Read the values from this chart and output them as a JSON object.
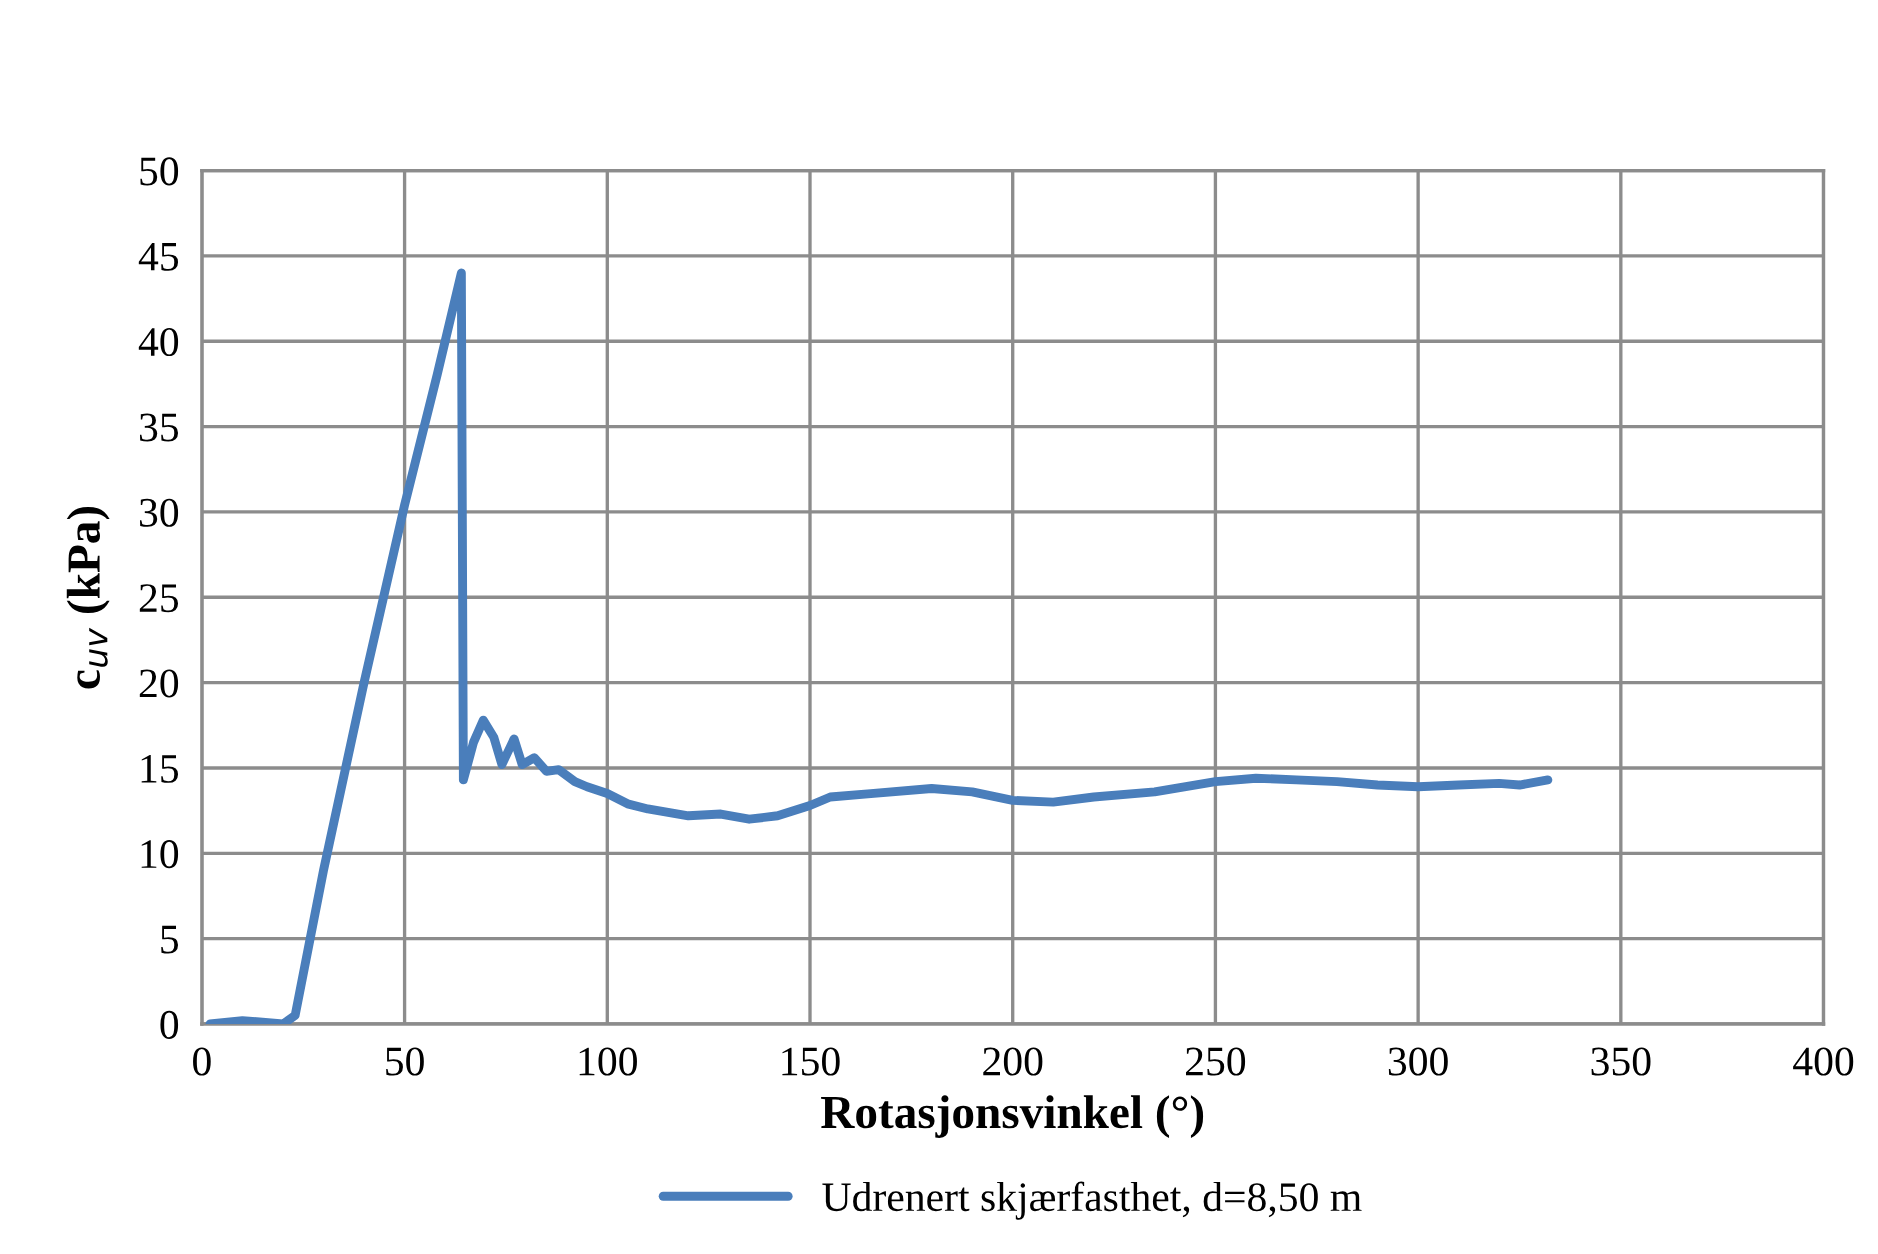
{
  "chart_data": {
    "type": "line",
    "xlabel": "Rotasjonsvinkel (°)",
    "ylabel": "c$_{uv}$ (kPa)",
    "xlim": [
      0,
      400
    ],
    "xticks": [
      0,
      50,
      100,
      150,
      200,
      250,
      300,
      350,
      400
    ],
    "ylim": [
      0,
      50
    ],
    "yticks": [
      0,
      5,
      10,
      15,
      20,
      25,
      30,
      35,
      40,
      45,
      50
    ],
    "grid": true,
    "legend": "bottom",
    "marker": "none",
    "line_style": "solid",
    "series": [
      {
        "name": "Udrenert skjærfasthet, d=8,50 m",
        "color": "#4a7ebb",
        "x": [
          2,
          10,
          20,
          23,
          30,
          40,
          50,
          58,
          64,
          64.5,
          67,
          69.4,
          72,
          74,
          77,
          79,
          82,
          85,
          88,
          92,
          95,
          100,
          105,
          110,
          120,
          128,
          135,
          142,
          150,
          155,
          165,
          180,
          190,
          200,
          210,
          220,
          235,
          250,
          260,
          270,
          280,
          290,
          300,
          310,
          320,
          325,
          332
        ],
        "values": [
          0,
          0.2,
          0,
          0.5,
          9,
          20,
          30.4,
          38,
          44,
          14.3,
          16.5,
          17.8,
          16.8,
          15.2,
          16.7,
          15.2,
          15.6,
          14.8,
          14.9,
          14.2,
          13.9,
          13.5,
          12.9,
          12.6,
          12.2,
          12.3,
          12.0,
          12.2,
          12.8,
          13.3,
          13.5,
          13.8,
          13.6,
          13.1,
          13.0,
          13.3,
          13.6,
          14.2,
          14.4,
          14.3,
          14.2,
          14.0,
          13.9,
          14.0,
          14.1,
          14.0,
          14.3
        ]
      }
    ]
  }
}
